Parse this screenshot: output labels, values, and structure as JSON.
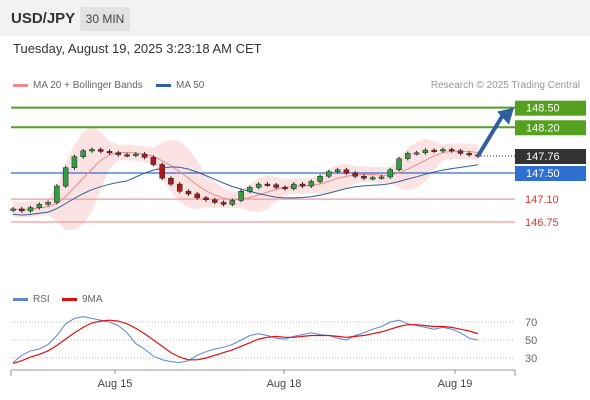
{
  "header": {
    "symbol": "USD/JPY",
    "timeframe": "30 MIN"
  },
  "timestamp": "Tuesday, August 19, 2025 3:23:18 AM CET",
  "legend": [
    {
      "label": "MA 20 + Bollinger Bands",
      "color": "#f08a8a"
    },
    {
      "label": "MA 50",
      "color": "#2f5f9e"
    }
  ],
  "credit": "Research © 2025 Trading Central",
  "rsi_legend": [
    {
      "label": "RSI",
      "color": "#5b84d6"
    },
    {
      "label": "9MA",
      "color": "#e01010"
    }
  ],
  "chart_data": [
    {
      "type": "candlestick",
      "title": "USD/JPY",
      "x_ticks": [
        "Aug 15",
        "Aug 18",
        "Aug 19"
      ],
      "ylim": [
        146.4,
        148.8
      ],
      "close_series": [
        146.95,
        146.92,
        146.97,
        147.02,
        147.05,
        147.3,
        147.58,
        147.75,
        147.84,
        147.86,
        147.83,
        147.81,
        147.78,
        147.77,
        147.79,
        147.74,
        147.63,
        147.42,
        147.33,
        147.22,
        147.18,
        147.12,
        147.09,
        147.05,
        147.02,
        147.08,
        147.22,
        147.28,
        147.33,
        147.32,
        147.28,
        147.26,
        147.33,
        147.3,
        147.37,
        147.45,
        147.52,
        147.55,
        147.5,
        147.45,
        147.42,
        147.43,
        147.44,
        147.55,
        147.72,
        147.8,
        147.81,
        147.85,
        147.84,
        147.86,
        147.84,
        147.8,
        147.78,
        147.76
      ],
      "levels": [
        {
          "value": 148.5,
          "label": "148.50",
          "color": "#55a01f"
        },
        {
          "value": 148.2,
          "label": "148.20",
          "color": "#55a01f"
        },
        {
          "value": 147.76,
          "label": "147.76",
          "color": "#333333",
          "note": "last price"
        },
        {
          "value": 147.5,
          "label": "147.50",
          "color": "#2f6fcf"
        },
        {
          "value": 147.1,
          "label": "147.10",
          "color": "#f29a9a"
        },
        {
          "value": 146.75,
          "label": "146.75",
          "color": "#f29a9a"
        }
      ],
      "indicators": [
        "MA 20 + Bollinger Bands",
        "MA 50"
      ],
      "annotation": "bullish arrow from 147.76 to 148.50"
    },
    {
      "type": "line",
      "title": "RSI",
      "series": [
        {
          "name": "RSI",
          "values": [
            25,
            33,
            38,
            40,
            45,
            55,
            68,
            74,
            76,
            74,
            72,
            70,
            66,
            58,
            46,
            40,
            32,
            28,
            26,
            25,
            27,
            33,
            37,
            40,
            42,
            45,
            50,
            55,
            57,
            55,
            52,
            51,
            54,
            56,
            58,
            56,
            55,
            52,
            50,
            55,
            58,
            62,
            65,
            70,
            72,
            68,
            66,
            64,
            62,
            64,
            62,
            58,
            52,
            50
          ]
        },
        {
          "name": "9MA",
          "values": [
            24,
            27,
            31,
            34,
            38,
            44,
            51,
            58,
            64,
            69,
            71,
            72,
            71,
            68,
            63,
            57,
            50,
            43,
            36,
            31,
            28,
            28,
            30,
            33,
            36,
            39,
            43,
            47,
            51,
            53,
            54,
            53,
            53,
            54,
            55,
            55,
            55,
            54,
            53,
            54,
            55,
            57,
            59,
            62,
            65,
            67,
            67,
            66,
            65,
            65,
            64,
            62,
            60,
            57
          ]
        }
      ],
      "ylim": [
        15,
        85
      ],
      "y_ticks": [
        "70",
        "50",
        "30"
      ]
    }
  ]
}
